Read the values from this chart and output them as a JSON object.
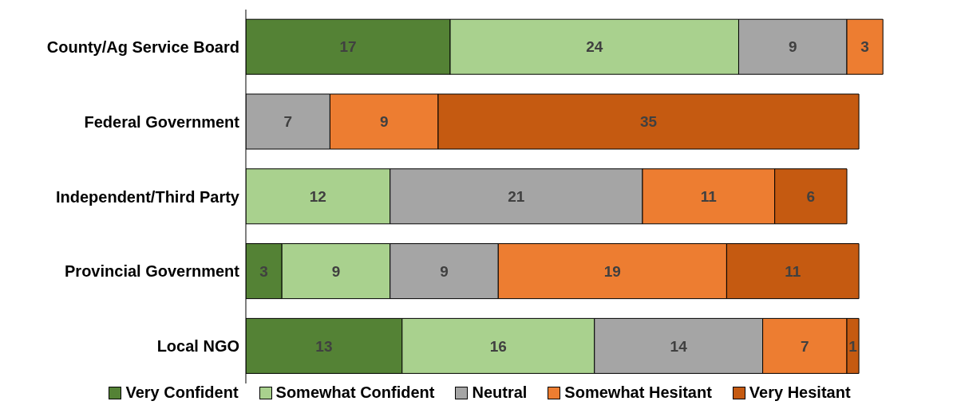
{
  "chart_data": {
    "type": "bar",
    "orientation": "horizontal",
    "stacked": true,
    "data_labels": true,
    "legend": "bottom",
    "tick_labels": "y",
    "categories": [
      "County/Ag Service Board",
      "Federal Government",
      "Independent/Third Party",
      "Provincial Government",
      "Local NGO"
    ],
    "series": [
      {
        "name": "Very Confident",
        "color": "#548235",
        "values": [
          17,
          null,
          null,
          3,
          13
        ]
      },
      {
        "name": "Somewhat Confident",
        "color": "#a9d18e",
        "values": [
          24,
          null,
          12,
          9,
          16
        ]
      },
      {
        "name": "Neutral",
        "color": "#a5a5a5",
        "values": [
          9,
          7,
          21,
          9,
          14
        ]
      },
      {
        "name": "Somewhat Hesitant",
        "color": "#ed7d31",
        "values": [
          3,
          9,
          11,
          19,
          7
        ]
      },
      {
        "name": "Very Hesitant",
        "color": "#c55a11",
        "values": [
          null,
          35,
          6,
          11,
          1
        ]
      }
    ]
  }
}
